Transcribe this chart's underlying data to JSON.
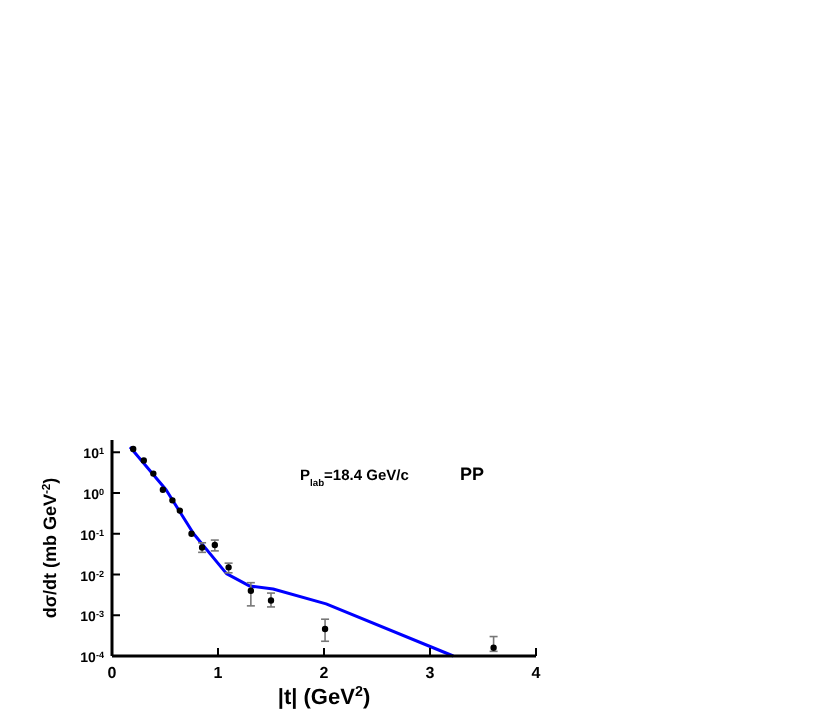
{
  "chart_data": {
    "type": "scatter",
    "xlabel": "|t| (GeV$^{2}$)",
    "ylabel": "dσ/dt (mb GeV$^{-2}$)",
    "log": "y",
    "xlim": [
      0,
      4
    ],
    "ylim": [
      0.0001,
      20
    ],
    "xticks": [
      0,
      1,
      2,
      3,
      4
    ],
    "yticks": [
      {
        "value": 10,
        "label": "10$^{1}$"
      },
      {
        "value": 1,
        "label": "10$^{0}$"
      },
      {
        "value": 0.1,
        "label": "10$^{-1}$"
      },
      {
        "value": 0.01,
        "label": "10$^{-2}$"
      },
      {
        "value": 0.001,
        "label": "10$^{-3}$"
      },
      {
        "value": 0.0001,
        "label": "10$^{-4}$"
      }
    ],
    "grid": false,
    "marker": "circle",
    "annotations": [
      "P$_{lab}$=18.4 GeV/c",
      "PP"
    ],
    "series": [
      {
        "color": "#000000",
        "x": [
          0.2,
          0.3,
          0.39,
          0.48,
          0.57,
          0.64,
          0.75,
          0.85,
          0.97,
          1.1,
          1.31,
          1.5,
          2.01,
          3.6
        ],
        "values": [
          12,
          6.3,
          3,
          1.2,
          0.66,
          0.37,
          0.1,
          0.046,
          0.053,
          0.015,
          0.004,
          0.0023,
          0.00046,
          0.00016
        ],
        "errors": [
          null,
          null,
          null,
          null,
          null,
          null,
          null,
          [
            0.035,
            0.06
          ],
          [
            0.038,
            0.07
          ],
          [
            0.011,
            0.019
          ],
          [
            0.0017,
            0.0063
          ],
          [
            0.0016,
            0.0035
          ],
          [
            0.00023,
            0.0008
          ],
          [
            0.00013,
            0.0003
          ]
        ]
      },
      {
        "type": "line",
        "color": "#0000ff",
        "marker": "none",
        "line_style": "solid",
        "x": [
          0.17,
          0.51,
          0.77,
          1.08,
          1.3,
          1.52,
          2.02,
          3.22
        ],
        "values": [
          13.5,
          1.2,
          0.1,
          0.0105,
          0.0052,
          0.0044,
          0.0019,
          0.0001
        ]
      }
    ]
  }
}
